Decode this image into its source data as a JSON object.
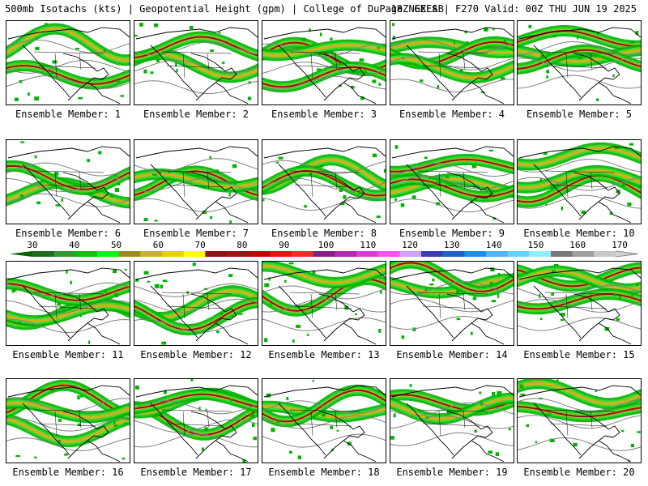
{
  "header": {
    "title_left": "500mb Isotachs (kts) | Geopotential Height (gpm) | College of DuPage NEXLAB",
    "title_right": "18Z GEFS | F270 Valid: 00Z THU JUN 19 2025"
  },
  "members": [
    {
      "label": "Ensemble Member: 1"
    },
    {
      "label": "Ensemble Member: 2"
    },
    {
      "label": "Ensemble Member: 3"
    },
    {
      "label": "Ensemble Member: 4"
    },
    {
      "label": "Ensemble Member: 5"
    },
    {
      "label": "Ensemble Member: 6"
    },
    {
      "label": "Ensemble Member: 7"
    },
    {
      "label": "Ensemble Member: 8"
    },
    {
      "label": "Ensemble Member: 9"
    },
    {
      "label": "Ensemble Member: 10"
    },
    {
      "label": "Ensemble Member: 11"
    },
    {
      "label": "Ensemble Member: 12"
    },
    {
      "label": "Ensemble Member: 13"
    },
    {
      "label": "Ensemble Member: 14"
    },
    {
      "label": "Ensemble Member: 15"
    },
    {
      "label": "Ensemble Member: 16"
    },
    {
      "label": "Ensemble Member: 17"
    },
    {
      "label": "Ensemble Member: 18"
    },
    {
      "label": "Ensemble Member: 19"
    },
    {
      "label": "Ensemble Member: 20"
    }
  ],
  "colorbar": {
    "labels": [
      "30",
      "40",
      "50",
      "60",
      "70",
      "80",
      "90",
      "100",
      "110",
      "120",
      "130",
      "140",
      "150",
      "160",
      "170"
    ],
    "colors": [
      "#1f6b1f",
      "#2f9a2f",
      "#00c800",
      "#00ff00",
      "#a08c1e",
      "#c8b41e",
      "#e6d200",
      "#ffff00",
      "#8c1414",
      "#a01414",
      "#c80000",
      "#e61414",
      "#ff2828",
      "#8c1e8c",
      "#b428b4",
      "#dc3cdc",
      "#ff50ff",
      "#d2a0ff",
      "#3c3cb4",
      "#1e64c8",
      "#1e8cff",
      "#50b4ff",
      "#64d2ff",
      "#8cf0ff",
      "#787878",
      "#a0a0a0",
      "#c8c8c8"
    ],
    "arrow_colors": [
      "#006400",
      "#d2d2d2"
    ]
  },
  "map_colors": {
    "coast": "#000000",
    "height_contour": "#808080",
    "background": "#ffffff"
  }
}
